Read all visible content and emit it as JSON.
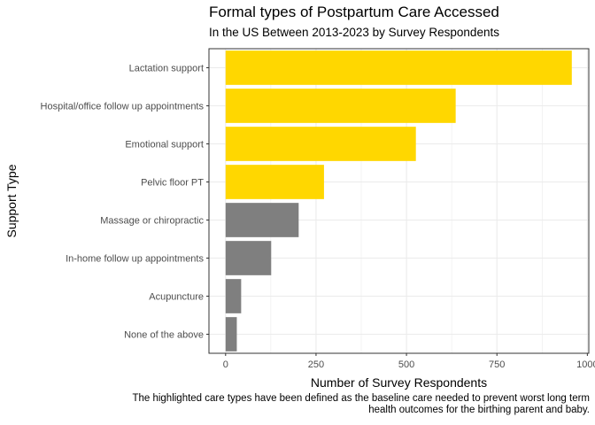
{
  "chart_data": {
    "type": "bar",
    "orientation": "horizontal",
    "title": "Formal types of Postpartum Care Accessed",
    "subtitle": "In the US Between 2013-2023 by Survey Respondents",
    "xlabel": "Number of Survey Respondents",
    "ylabel": "Support Type",
    "caption": [
      "The highlighted care types have been defined as the baseline care needed to prevent worst long term",
      "health outcomes for the birthing parent and baby."
    ],
    "categories": [
      "Lactation support",
      "Hospital/office follow up appointments",
      "Emotional support",
      "Pelvic floor PT",
      "Massage or chiropractic",
      "In-home follow up appointments",
      "Acupuncture",
      "None of the above"
    ],
    "values": [
      957,
      636,
      526,
      272,
      202,
      126,
      43,
      31
    ],
    "highlighted": [
      true,
      true,
      true,
      true,
      false,
      false,
      false,
      false
    ],
    "xlim": [
      -46,
      1004
    ],
    "xticks": [
      0,
      250,
      500,
      750,
      1000
    ],
    "grid": true,
    "colors": {
      "highlight": "#FFD700",
      "other": "#7F7F7F",
      "grid": "#EBEBEB",
      "panel_border": "#333333"
    }
  }
}
